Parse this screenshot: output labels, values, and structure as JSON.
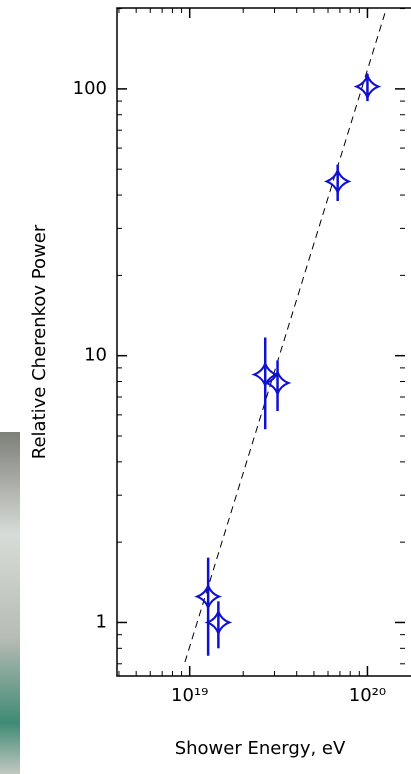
{
  "chart_data": {
    "type": "scatter",
    "x_label": "Shower Energy, eV",
    "y_label": "Relative Cherenkov Power",
    "x_log": true,
    "y_log": true,
    "xlim": [
      3.9e+18,
      1.9e+20
    ],
    "ylim": [
      0.63,
      201
    ],
    "xticks": [
      {
        "value": 1e+19,
        "label": "10¹⁹"
      },
      {
        "value": 1e+20,
        "label": "10²⁰"
      }
    ],
    "yticks": [
      1,
      10,
      100
    ],
    "series": [
      {
        "color": "#1010d0",
        "x": [
          1.27e+19,
          1.45e+19,
          2.66e+19,
          3.12e+19,
          6.8e+19,
          1e+20
        ],
        "values": [
          1.25,
          1.0,
          8.5,
          7.9,
          45,
          102
        ],
        "yerr": [
          0.5,
          0.2,
          3.2,
          1.7,
          7,
          12
        ]
      }
    ],
    "fit_line": {
      "x": [
        9.4e+18,
        1.28e+20
      ],
      "values": [
        0.71,
        201
      ]
    }
  }
}
